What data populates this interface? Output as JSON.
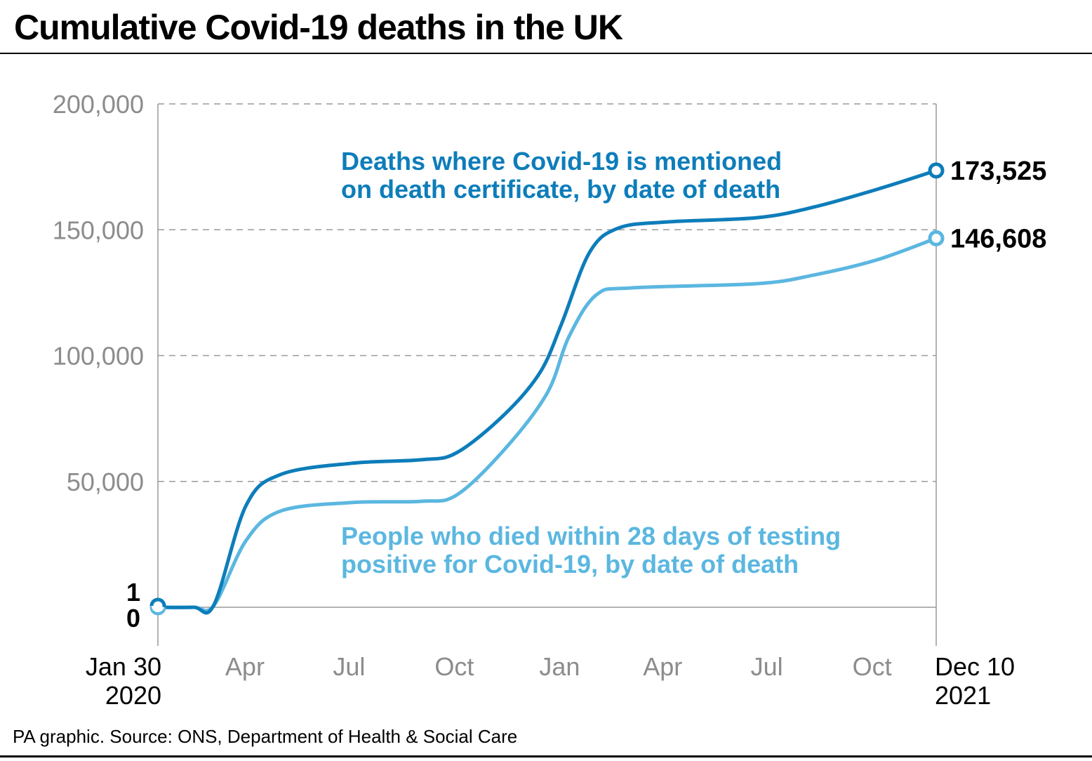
{
  "chart_data": {
    "type": "line",
    "title": "Cumulative Covid-19 deaths in the UK",
    "source": "PA graphic. Source: ONS, Department of Health & Social Care",
    "xlabel": "",
    "ylabel": "",
    "xlim": [
      "2020-01-30",
      "2021-12-10"
    ],
    "ylim": [
      0,
      200000
    ],
    "grid": "horizontal dashed",
    "y_ticks": [
      {
        "value": 50000,
        "label": "50,000"
      },
      {
        "value": 100000,
        "label": "100,000"
      },
      {
        "value": 150000,
        "label": "150,000"
      },
      {
        "value": 200000,
        "label": "200,000"
      }
    ],
    "y_start_labels": [
      "1",
      "0"
    ],
    "x_ticks": [
      {
        "date": "2020-04-15",
        "label": "Apr"
      },
      {
        "date": "2020-07-15",
        "label": "Jul"
      },
      {
        "date": "2020-10-15",
        "label": "Oct"
      },
      {
        "date": "2021-01-15",
        "label": "Jan"
      },
      {
        "date": "2021-04-15",
        "label": "Apr"
      },
      {
        "date": "2021-07-15",
        "label": "Jul"
      },
      {
        "date": "2021-10-15",
        "label": "Oct"
      }
    ],
    "x_start_label": [
      "Jan 30",
      "2020"
    ],
    "x_end_label": [
      "Dec 10",
      "2021"
    ],
    "series": [
      {
        "name": [
          "Deaths where Covid-19 is mentioned",
          "on death certificate, by date of death"
        ],
        "color": "#0d7dba",
        "end_label": "173,525",
        "points": [
          [
            "2020-01-30",
            0
          ],
          [
            "2020-03-01",
            0
          ],
          [
            "2020-03-19",
            1000
          ],
          [
            "2020-04-16",
            40400
          ],
          [
            "2020-05-16",
            52700
          ],
          [
            "2020-07-17",
            57200
          ],
          [
            "2020-09-16",
            58600
          ],
          [
            "2020-10-17",
            61400
          ],
          [
            "2020-11-28",
            76700
          ],
          [
            "2020-12-29",
            93400
          ],
          [
            "2021-01-17",
            113000
          ],
          [
            "2021-02-10",
            140900
          ],
          [
            "2021-03-07",
            150600
          ],
          [
            "2021-04-19",
            153100
          ],
          [
            "2021-07-07",
            154800
          ],
          [
            "2021-08-25",
            159000
          ],
          [
            "2021-10-19",
            166000
          ],
          [
            "2021-12-10",
            173525
          ]
        ]
      },
      {
        "name": [
          "People who died within 28 days of testing",
          "positive for Covid-19, by date of death"
        ],
        "color": "#5bb7e0",
        "end_label": "146,608",
        "points": [
          [
            "2020-01-30",
            0
          ],
          [
            "2020-03-01",
            0
          ],
          [
            "2020-03-19",
            800
          ],
          [
            "2020-04-16",
            26500
          ],
          [
            "2020-05-16",
            38200
          ],
          [
            "2020-07-17",
            41600
          ],
          [
            "2020-09-16",
            42100
          ],
          [
            "2020-10-17",
            44600
          ],
          [
            "2020-11-28",
            62800
          ],
          [
            "2021-01-04",
            85000
          ],
          [
            "2021-01-23",
            107400
          ],
          [
            "2021-02-16",
            124100
          ],
          [
            "2021-03-19",
            126900
          ],
          [
            "2021-07-07",
            128600
          ],
          [
            "2021-08-25",
            132000
          ],
          [
            "2021-10-19",
            138000
          ],
          [
            "2021-12-10",
            146608
          ]
        ]
      }
    ]
  }
}
